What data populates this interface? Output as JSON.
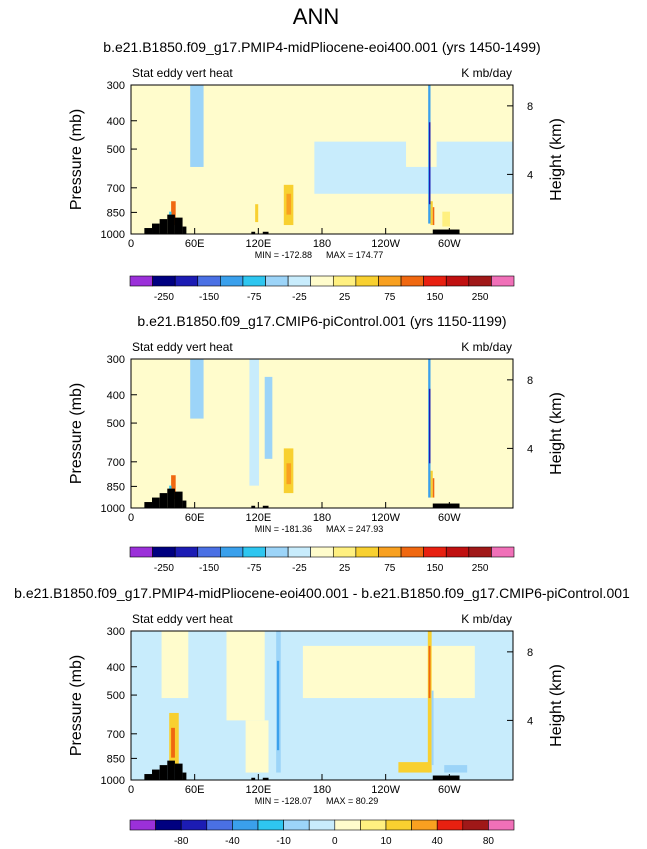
{
  "page_title": "ANN",
  "palette": [
    "#9b30d9",
    "#000080",
    "#1c1cb4",
    "#4a70e4",
    "#3aa0ec",
    "#2ec6f0",
    "#9cd4f8",
    "#c8ecfc",
    "#fffccc",
    "#fff080",
    "#f8d030",
    "#f8a020",
    "#f06810",
    "#e82010",
    "#c01010",
    "#a01818",
    "#f070b8"
  ],
  "chart_data": [
    {
      "type": "heatmap",
      "title": "b.e21.B1850.f09_g17.PMIP4-midPliocene-eoi400.001 (yrs 1450-1499)",
      "left_label": "Stat eddy vert heat",
      "right_label": "K mb/day",
      "ylabel": "Pressure (mb)",
      "y2label": "Height (km)",
      "xticks": [
        "0",
        "60E",
        "120E",
        "180",
        "120W",
        "60W"
      ],
      "yticks": [
        "300",
        "400",
        "500",
        "700",
        "850",
        "1000"
      ],
      "y2ticks": [
        "8",
        "4"
      ],
      "min_label": "MIN = -172.88",
      "max_label": "MAX = 174.77",
      "levels": [
        "-250",
        "-150",
        "-75",
        "-25",
        "25",
        "75",
        "150",
        "250"
      ],
      "min": -172.88,
      "max": 174.77
    },
    {
      "type": "heatmap",
      "title": "b.e21.B1850.f09_g17.CMIP6-piControl.001 (yrs 1150-1199)",
      "left_label": "Stat eddy vert heat",
      "right_label": "K mb/day",
      "ylabel": "Pressure (mb)",
      "y2label": "Height (km)",
      "xticks": [
        "0",
        "60E",
        "120E",
        "180",
        "120W",
        "60W"
      ],
      "yticks": [
        "300",
        "400",
        "500",
        "700",
        "850",
        "1000"
      ],
      "y2ticks": [
        "8",
        "4"
      ],
      "min_label": "MIN = -181.36",
      "max_label": "MAX = 247.93",
      "levels": [
        "-250",
        "-150",
        "-75",
        "-25",
        "25",
        "75",
        "150",
        "250"
      ],
      "min": -181.36,
      "max": 247.93
    },
    {
      "type": "heatmap",
      "title": "b.e21.B1850.f09_g17.PMIP4-midPliocene-eoi400.001 - b.e21.B1850.f09_g17.CMIP6-piControl.001",
      "left_label": "Stat eddy vert heat",
      "right_label": "K mb/day",
      "ylabel": "Pressure (mb)",
      "y2label": "Height (km)",
      "xticks": [
        "0",
        "60E",
        "120E",
        "180",
        "120W",
        "60W"
      ],
      "yticks": [
        "300",
        "400",
        "500",
        "700",
        "850",
        "1000"
      ],
      "y2ticks": [
        "8",
        "4"
      ],
      "min_label": "MIN = -128.07",
      "max_label": "MAX = 80.29",
      "levels": [
        "-80",
        "-40",
        "-10",
        "0",
        "10",
        "40",
        "80"
      ],
      "min": -128.07,
      "max": 80.29
    }
  ]
}
